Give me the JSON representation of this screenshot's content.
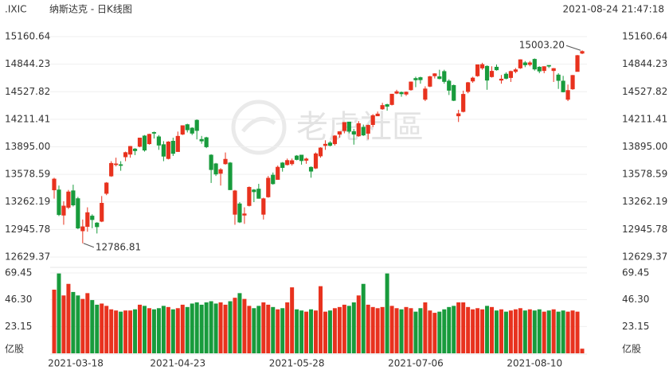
{
  "header": {
    "symbol": ".IXIC",
    "title": "纳斯达克 - 日K线图",
    "timestamp": "2021-08-24 21:47:18"
  },
  "watermark": "老虎社區",
  "chart_data": {
    "type": "candlestick",
    "categories": [
      null,
      "2021-03-18",
      null,
      null,
      null,
      null,
      null,
      null,
      null,
      null,
      null,
      null,
      null,
      null,
      null,
      null,
      null,
      null,
      null,
      null,
      null,
      null,
      null,
      null,
      null,
      null,
      "2021-04-23",
      null,
      null,
      null,
      null,
      null,
      null,
      null,
      null,
      null,
      null,
      null,
      null,
      null,
      null,
      null,
      null,
      null,
      null,
      null,
      null,
      null,
      null,
      null,
      null,
      "2021-05-28",
      null,
      null,
      null,
      null,
      null,
      null,
      null,
      null,
      null,
      null,
      null,
      null,
      null,
      null,
      null,
      null,
      null,
      null,
      null,
      null,
      null,
      null,
      null,
      null,
      "2021-07-06",
      null,
      null,
      null,
      null,
      null,
      null,
      null,
      null,
      null,
      null,
      null,
      null,
      null,
      null,
      null,
      null,
      null,
      null,
      null,
      null,
      null,
      null,
      null,
      null,
      "2021-08-10",
      null,
      null,
      null,
      null,
      null,
      null,
      null,
      null,
      null,
      null
    ],
    "open": [
      13400,
      13400,
      13110,
      13200,
      13390,
      13300,
      12930,
      12980,
      13100,
      13020,
      13040,
      13360,
      13560,
      13690,
      13690,
      13780,
      13810,
      13870,
      13900,
      14020,
      13930,
      14060,
      14010,
      13920,
      13760,
      13960,
      13840,
      14040,
      14150,
      14110,
      14200,
      13980,
      14000,
      13800,
      13700,
      13590,
      13700,
      13710,
      13120,
      13240,
      13110,
      13220,
      13400,
      13410,
      13120,
      13320,
      13570,
      13520,
      13710,
      13690,
      13700,
      13790,
      13800,
      13740,
      13660,
      13650,
      13790,
      13910,
      13940,
      13930,
      14040,
      14080,
      14180,
      14070,
      14020,
      14120,
      14050,
      14150,
      14250,
      14330,
      14380,
      14380,
      14510,
      14520,
      14500,
      14550,
      14680,
      14690,
      14440,
      14590,
      14710,
      14700,
      14760,
      14650,
      14600,
      14250,
      14300,
      14530,
      14650,
      14710,
      14800,
      14820,
      14700,
      14810,
      14660,
      14730,
      14690,
      14760,
      14800,
      14860,
      14840,
      14900,
      14810,
      14770,
      14830,
      14770,
      14720,
      14650,
      14440,
      14560,
      14760,
      14970
    ],
    "high": [
      13540,
      13450,
      13270,
      13400,
      13460,
      13320,
      13060,
      13200,
      13120,
      13030,
      13330,
      13490,
      13730,
      13770,
      13730,
      13840,
      13905,
      13880,
      14000,
      14030,
      14045,
      14070,
      14030,
      13960,
      13960,
      14000,
      14070,
      14140,
      14160,
      14120,
      14210,
      14020,
      14010,
      13810,
      13710,
      13650,
      13830,
      13720,
      13400,
      13260,
      13200,
      13440,
      13410,
      13470,
      13310,
      13560,
      13600,
      13680,
      13720,
      13760,
      13760,
      13800,
      13800,
      13770,
      13670,
      13830,
      13890,
      13970,
      13960,
      14030,
      14070,
      14175,
      14180,
      14100,
      14190,
      14150,
      14150,
      14270,
      14300,
      14400,
      14390,
      14500,
      14550,
      14530,
      14530,
      14645,
      14700,
      14700,
      14590,
      14710,
      14740,
      14780,
      14780,
      14670,
      14610,
      14320,
      14540,
      14640,
      14700,
      14840,
      14860,
      14830,
      14820,
      14840,
      14720,
      14750,
      14770,
      14800,
      14900,
      14880,
      14880,
      14910,
      14820,
      14820,
      14830,
      14800,
      14740,
      14710,
      14610,
      14720,
      14950,
      15003.2
    ],
    "low": [
      13300,
      13100,
      13000,
      13180,
      13210,
      12950,
      12786.81,
      12920,
      12960,
      12900,
      13030,
      13340,
      13550,
      13670,
      13620,
      13730,
      13770,
      13800,
      13890,
      13840,
      13920,
      13990,
      13860,
      13730,
      13750,
      13790,
      13840,
      14030,
      14060,
      14030,
      13980,
      13930,
      13880,
      13480,
      13560,
      13450,
      13690,
      13400,
      13000,
      13020,
      13010,
      13210,
      13260,
      13300,
      13060,
      13310,
      13460,
      13520,
      13610,
      13680,
      13680,
      13740,
      13690,
      13700,
      13540,
      13640,
      13770,
      13860,
      13900,
      13910,
      14000,
      14050,
      14050,
      13920,
      14010,
      14020,
      13980,
      14120,
      14250,
      14320,
      14310,
      14370,
      14500,
      14470,
      14480,
      14540,
      14580,
      14620,
      14420,
      14580,
      14680,
      14670,
      14620,
      14490,
      14420,
      14180,
      14290,
      14510,
      14630,
      14700,
      14780,
      14550,
      14690,
      14770,
      14620,
      14670,
      14640,
      14740,
      14790,
      14810,
      14820,
      14770,
      14740,
      14740,
      14800,
      14640,
      14560,
      14520,
      14420,
      14550,
      14760,
      14960
    ],
    "close": [
      13525,
      13116,
      13215,
      13377,
      13227,
      12962,
      12977,
      13139,
      13059,
      12977,
      13247,
      13480,
      13705,
      13699,
      13688,
      13829,
      13900,
      13850,
      13996,
      13857,
      14039,
      14052,
      13914,
      13787,
      13951,
      13819,
      14016,
      14138,
      14090,
      14051,
      14082,
      13962,
      13895,
      13633,
      13582,
      13633,
      13752,
      13402,
      13389,
      13031,
      13125,
      13430,
      13379,
      13303,
      13299,
      13535,
      13471,
      13661,
      13657,
      13738,
      13736,
      13749,
      13736,
      13756,
      13615,
      13815,
      13882,
      13925,
      13911,
      14020,
      14069,
      14175,
      14073,
      14040,
      14162,
      14030,
      14142,
      14254,
      14272,
      14370,
      14360,
      14500,
      14528,
      14504,
      14523,
      14640,
      14664,
      14665,
      14560,
      14701,
      14734,
      14678,
      14645,
      14544,
      14428,
      14275,
      14498,
      14632,
      14685,
      14837,
      14840,
      14660,
      14763,
      14779,
      14673,
      14681,
      14761,
      14780,
      14895,
      14836,
      14860,
      14788,
      14765,
      14816,
      14823,
      14794,
      14657,
      14526,
      14542,
      14715,
      14943,
      14990
    ],
    "volume": [
      55,
      69,
      50,
      60,
      53,
      50,
      47,
      52,
      46,
      42,
      43,
      41,
      38,
      37,
      36,
      37,
      37,
      38,
      42,
      41,
      39,
      38,
      39,
      41,
      40,
      38,
      39,
      42,
      40,
      43,
      44,
      42,
      44,
      45,
      43,
      44,
      42,
      45,
      48,
      52,
      47,
      41,
      39,
      41,
      44,
      42,
      40,
      38,
      39,
      44,
      57,
      38,
      37,
      36,
      38,
      37,
      58,
      36,
      37,
      39,
      40,
      42,
      41,
      44,
      50,
      60,
      42,
      40,
      39,
      40,
      69,
      41,
      39,
      38,
      40,
      39,
      36,
      39,
      44,
      37,
      35,
      36,
      38,
      40,
      41,
      44,
      44,
      40,
      38,
      39,
      38,
      41,
      40,
      37,
      38,
      36,
      37,
      38,
      39,
      37,
      38,
      37,
      38,
      36,
      37,
      38,
      36,
      37,
      36,
      37,
      36,
      4
    ],
    "up_color": "#e8321e",
    "down_color": "#189b3c",
    "ylim": [
      12629.37,
      15160.64
    ],
    "yticks": [
      12629.37,
      12945.78,
      13262.19,
      13578.59,
      {
        "value": 13895,
        "label": "13895.00"
      },
      14211.41,
      14527.82,
      14844.23,
      15160.64
    ],
    "volume_ylim": [
      0,
      69.45
    ],
    "volume_yticks": [
      23.15,
      {
        "value": 46.3,
        "label": "46.30"
      },
      69.45
    ],
    "volume_unit": "亿股",
    "annotations": [
      {
        "text": "15003.20",
        "value": 15003.2
      },
      {
        "text": "12786.81",
        "value": 12786.81
      }
    ],
    "grid": true
  }
}
